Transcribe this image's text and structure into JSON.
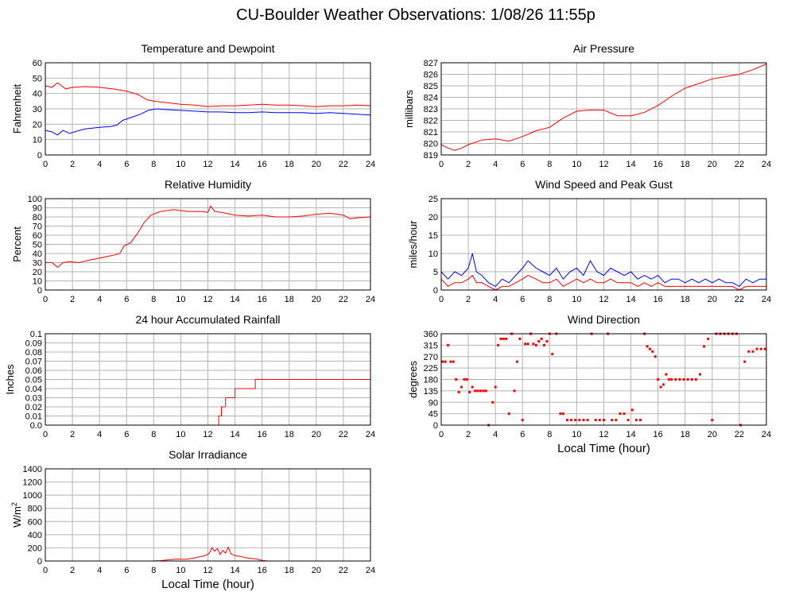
{
  "page": {
    "title": "CU-Boulder Weather Observations: 1/08/26 11:55p"
  },
  "colors": {
    "red": "#ff0000",
    "blue": "#0000ff",
    "grid": "#b4b4b4",
    "frame": "#000000"
  },
  "chart_data": [
    {
      "id": "temp",
      "type": "line",
      "title": "Temperature and Dewpoint",
      "xlabel": "",
      "ylabel": "Fahrenheit",
      "xlim": [
        0,
        24
      ],
      "ylim": [
        0,
        60
      ],
      "xticks": [
        0,
        2,
        4,
        6,
        8,
        10,
        12,
        14,
        16,
        18,
        20,
        22,
        24
      ],
      "yticks": [
        0,
        10,
        20,
        30,
        40,
        50,
        60
      ],
      "grid": true,
      "series": [
        {
          "color": "#ff0000",
          "x": [
            0,
            0.5,
            0.9,
            1.2,
            1.5,
            2,
            3,
            4,
            5,
            6,
            6.8,
            7.5,
            8,
            9,
            10,
            11,
            12,
            13,
            14,
            15,
            16,
            17,
            18,
            19,
            20,
            21,
            22,
            23,
            24
          ],
          "y": [
            45,
            44,
            47,
            45,
            43,
            44,
            44.5,
            44,
            43,
            41.5,
            39.5,
            36,
            35,
            34,
            33,
            32.5,
            31.5,
            32,
            32,
            32.5,
            33,
            32.5,
            32.5,
            32,
            31.5,
            32,
            32,
            32.5,
            32
          ]
        },
        {
          "color": "#0000ff",
          "x": [
            0,
            0.5,
            0.9,
            1.3,
            1.8,
            2.5,
            3,
            4,
            4.8,
            5.3,
            5.7,
            6.2,
            7,
            7.6,
            8.2,
            9,
            10,
            11,
            12,
            13,
            14,
            15,
            16,
            17,
            18,
            19,
            20,
            21,
            22,
            23,
            24
          ],
          "y": [
            16,
            15,
            13,
            16,
            14,
            16,
            17,
            18,
            18.5,
            19.5,
            22.5,
            24,
            26.5,
            29,
            30,
            29.5,
            29,
            28.5,
            28,
            28,
            27.5,
            27.5,
            28,
            27.5,
            27.5,
            27.5,
            27,
            27.5,
            27,
            26.5,
            26
          ]
        }
      ]
    },
    {
      "id": "pressure",
      "type": "line",
      "title": "Air Pressure",
      "xlabel": "",
      "ylabel": "millibars",
      "xlim": [
        0,
        24
      ],
      "ylim": [
        819,
        827
      ],
      "xticks": [
        0,
        2,
        4,
        6,
        8,
        10,
        12,
        14,
        16,
        18,
        20,
        22,
        24
      ],
      "yticks": [
        819,
        820,
        821,
        822,
        823,
        824,
        825,
        826,
        827
      ],
      "grid": true,
      "series": [
        {
          "color": "#ff0000",
          "x": [
            0,
            0.5,
            1,
            1.5,
            2,
            3,
            4,
            5,
            6,
            7,
            8,
            9,
            10,
            11,
            12,
            13,
            14,
            15,
            16,
            17,
            18,
            19,
            20,
            21,
            22,
            23,
            24
          ],
          "y": [
            819.9,
            819.6,
            819.4,
            819.6,
            819.9,
            820.3,
            820.4,
            820.2,
            820.6,
            821.1,
            821.4,
            822.2,
            822.8,
            822.9,
            822.9,
            822.4,
            822.4,
            822.7,
            823.3,
            824.1,
            824.8,
            825.2,
            825.6,
            825.8,
            826.0,
            826.4,
            826.9
          ]
        }
      ]
    },
    {
      "id": "humidity",
      "type": "line",
      "title": "Relative Humidity",
      "xlabel": "",
      "ylabel": "Percent",
      "xlim": [
        0,
        24
      ],
      "ylim": [
        0,
        100
      ],
      "xticks": [
        0,
        2,
        4,
        6,
        8,
        10,
        12,
        14,
        16,
        18,
        20,
        22,
        24
      ],
      "yticks": [
        0,
        10,
        20,
        30,
        40,
        50,
        60,
        70,
        80,
        90,
        100
      ],
      "grid": true,
      "series": [
        {
          "color": "#ff0000",
          "x": [
            0,
            0.5,
            0.9,
            1.3,
            1.8,
            2.5,
            3,
            4,
            5,
            5.5,
            5.8,
            6.3,
            6.8,
            7.3,
            7.8,
            8.5,
            9.5,
            10.5,
            11.5,
            12,
            12.2,
            12.5,
            13,
            14,
            15,
            16,
            17,
            18,
            19,
            20,
            21,
            22,
            22.5,
            23,
            24
          ],
          "y": [
            30,
            30,
            25,
            30,
            31,
            30,
            32,
            35,
            38,
            40,
            48,
            52,
            62,
            74,
            82,
            86,
            88,
            86,
            86,
            85,
            92,
            86,
            85,
            82,
            81,
            82,
            80,
            80,
            81,
            83,
            84,
            82,
            78,
            79,
            80
          ]
        }
      ]
    },
    {
      "id": "wind",
      "type": "line",
      "title": "Wind Speed and Peak Gust",
      "xlabel": "",
      "ylabel": "miles/hour",
      "xlim": [
        0,
        24
      ],
      "ylim": [
        0,
        25
      ],
      "xticks": [
        0,
        2,
        4,
        6,
        8,
        10,
        12,
        14,
        16,
        18,
        20,
        22,
        24
      ],
      "yticks": [
        0,
        5,
        10,
        15,
        20,
        25
      ],
      "grid": true,
      "series": [
        {
          "color": "#0000ff",
          "x": [
            0,
            0.5,
            1,
            1.5,
            2,
            2.3,
            2.6,
            3,
            3.5,
            4,
            4.5,
            5,
            5.5,
            6,
            6.4,
            7,
            7.5,
            8,
            8.5,
            9,
            9.5,
            10,
            10.5,
            11,
            11.5,
            12,
            12.5,
            13,
            13.5,
            14,
            14.5,
            15,
            15.5,
            16,
            16.5,
            17,
            17.5,
            18,
            18.5,
            19,
            19.5,
            20,
            20.5,
            21,
            21.5,
            22,
            22.5,
            23,
            23.5,
            24
          ],
          "y": [
            5,
            3,
            5,
            4,
            6,
            10,
            5,
            4,
            2,
            1,
            3,
            2,
            4,
            6,
            8,
            6,
            5,
            4,
            6,
            3,
            5,
            6,
            4,
            8,
            5,
            4,
            6,
            5,
            4,
            5,
            3,
            4,
            3,
            4,
            2,
            3,
            3,
            2,
            3,
            2,
            3,
            2,
            3,
            2,
            2,
            1,
            3,
            2,
            3,
            3
          ]
        },
        {
          "color": "#ff0000",
          "x": [
            0,
            0.5,
            1,
            1.5,
            2,
            2.3,
            2.6,
            3,
            3.5,
            4,
            4.5,
            5,
            5.5,
            6,
            6.4,
            7,
            7.5,
            8,
            8.5,
            9,
            9.5,
            10,
            10.5,
            11,
            11.5,
            12,
            12.5,
            13,
            13.5,
            14,
            14.5,
            15,
            15.5,
            16,
            16.5,
            17,
            17.5,
            18,
            18.5,
            19,
            19.5,
            20,
            20.5,
            21,
            21.5,
            22,
            22.5,
            23,
            23.5,
            24
          ],
          "y": [
            3,
            1,
            2,
            2,
            3,
            4,
            2,
            2,
            1,
            0,
            1,
            1,
            2,
            3,
            4,
            3,
            2,
            2,
            3,
            1,
            2,
            3,
            2,
            3,
            2,
            2,
            3,
            2,
            2,
            2,
            1,
            2,
            1,
            2,
            1,
            1,
            1,
            1,
            1,
            1,
            1,
            1,
            1,
            1,
            1,
            0,
            1,
            1,
            1,
            1
          ]
        }
      ]
    },
    {
      "id": "rain",
      "type": "line",
      "title": "24 hour Accumulated Rainfall",
      "xlabel": "",
      "ylabel": "Inches",
      "xlim": [
        0,
        24
      ],
      "ylim": [
        0,
        0.1
      ],
      "xticks": [
        0,
        2,
        4,
        6,
        8,
        10,
        12,
        14,
        16,
        18,
        20,
        22,
        24
      ],
      "yticks": [
        "0.0",
        "0.01",
        "0.02",
        "0.03",
        "0.04",
        "0.05",
        "0.06",
        "0.07",
        "0.08",
        "0.09",
        "0.1"
      ],
      "grid": true,
      "series": [
        {
          "color": "#ff0000",
          "x": [
            0,
            12.8,
            12.8,
            13.0,
            13.0,
            13.3,
            13.3,
            14.0,
            14.0,
            15.5,
            15.5,
            24
          ],
          "y": [
            0,
            0,
            0.01,
            0.01,
            0.02,
            0.02,
            0.03,
            0.03,
            0.04,
            0.04,
            0.05,
            0.05
          ]
        }
      ]
    },
    {
      "id": "winddir",
      "type": "scatter",
      "title": "Wind Direction",
      "xlabel": "Local Time (hour)",
      "ylabel": "degrees",
      "xlim": [
        0,
        24
      ],
      "ylim": [
        0,
        360
      ],
      "xticks": [
        0,
        2,
        4,
        6,
        8,
        10,
        12,
        14,
        16,
        18,
        20,
        22,
        24
      ],
      "yticks": [
        0,
        45,
        90,
        135,
        180,
        225,
        270,
        315,
        360
      ],
      "grid": true,
      "series": [
        {
          "color": "#ff0000",
          "x": [
            0.1,
            0.3,
            0.5,
            0.7,
            0.9,
            1.1,
            1.3,
            1.5,
            1.7,
            1.9,
            2.1,
            2.3,
            2.5,
            2.7,
            2.9,
            3.1,
            3.3,
            3.5,
            3.8,
            4.0,
            4.2,
            4.4,
            4.6,
            4.8,
            5.0,
            5.2,
            5.4,
            5.6,
            5.8,
            6.0,
            6.2,
            6.4,
            6.6,
            6.8,
            7.0,
            7.2,
            7.4,
            7.6,
            7.8,
            8.0,
            8.2,
            8.5,
            8.8,
            9.0,
            9.3,
            9.6,
            9.9,
            10.2,
            10.5,
            10.8,
            11.1,
            11.4,
            11.7,
            12.0,
            12.3,
            12.6,
            12.9,
            13.2,
            13.5,
            13.8,
            14.1,
            14.4,
            14.7,
            15.0,
            15.2,
            15.4,
            15.6,
            15.8,
            16.0,
            16.2,
            16.4,
            16.6,
            16.8,
            17.0,
            17.3,
            17.6,
            17.9,
            18.2,
            18.5,
            18.8,
            19.1,
            19.4,
            19.7,
            20.0,
            20.3,
            20.6,
            20.9,
            21.2,
            21.5,
            21.8,
            22.1,
            22.4,
            22.7,
            23.0,
            23.3,
            23.6,
            23.9
          ],
          "y": [
            250,
            250,
            315,
            250,
            250,
            180,
            130,
            150,
            180,
            180,
            130,
            150,
            135,
            135,
            135,
            135,
            135,
            0,
            90,
            150,
            315,
            340,
            340,
            340,
            45,
            360,
            135,
            250,
            340,
            20,
            320,
            320,
            360,
            320,
            315,
            330,
            340,
            315,
            330,
            360,
            280,
            360,
            45,
            45,
            20,
            20,
            20,
            20,
            20,
            20,
            360,
            20,
            20,
            20,
            360,
            20,
            20,
            45,
            45,
            20,
            60,
            20,
            20,
            360,
            310,
            300,
            290,
            270,
            180,
            150,
            160,
            200,
            180,
            180,
            180,
            180,
            180,
            180,
            180,
            180,
            200,
            310,
            340,
            20,
            360,
            360,
            360,
            360,
            360,
            360,
            0,
            250,
            290,
            290,
            300,
            300,
            300
          ]
        }
      ]
    },
    {
      "id": "solar",
      "type": "line",
      "title": "Solar Irradiance",
      "xlabel": "Local Time (hour)",
      "ylabel": "W/m",
      "ylabel_sup": "2",
      "xlim": [
        0,
        24
      ],
      "ylim": [
        0,
        1400
      ],
      "xticks": [
        0,
        2,
        4,
        6,
        8,
        10,
        12,
        14,
        16,
        18,
        20,
        22,
        24
      ],
      "yticks": [
        0,
        200,
        400,
        600,
        800,
        1000,
        1200,
        1400
      ],
      "grid": true,
      "series": [
        {
          "color": "#ff0000",
          "x": [
            0,
            7.8,
            8.5,
            9.2,
            9.8,
            10.3,
            10.8,
            11.3,
            11.8,
            12.1,
            12.3,
            12.5,
            12.7,
            12.9,
            13.1,
            13.3,
            13.5,
            13.7,
            14.0,
            14.4,
            14.8,
            15.2,
            15.6,
            16.0,
            16.4,
            24
          ],
          "y": [
            0,
            0,
            5,
            20,
            30,
            25,
            40,
            60,
            80,
            120,
            200,
            150,
            190,
            100,
            160,
            120,
            210,
            110,
            80,
            70,
            50,
            40,
            30,
            10,
            0,
            0
          ]
        }
      ]
    }
  ]
}
